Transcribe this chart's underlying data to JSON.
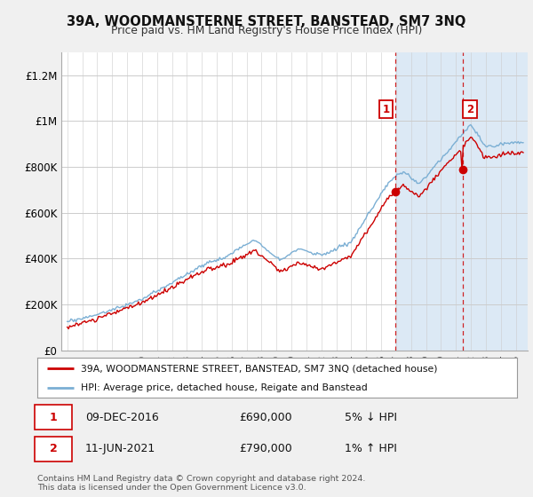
{
  "title": "39A, WOODMANSTERNE STREET, BANSTEAD, SM7 3NQ",
  "subtitle": "Price paid vs. HM Land Registry's House Price Index (HPI)",
  "legend_line1": "39A, WOODMANSTERNE STREET, BANSTEAD, SM7 3NQ (detached house)",
  "legend_line2": "HPI: Average price, detached house, Reigate and Banstead",
  "annotation1_label": "1",
  "annotation1_date": "09-DEC-2016",
  "annotation1_price": "£690,000",
  "annotation1_pct": "5% ↓ HPI",
  "annotation2_label": "2",
  "annotation2_date": "11-JUN-2021",
  "annotation2_price": "£790,000",
  "annotation2_pct": "1% ↑ HPI",
  "footer": "Contains HM Land Registry data © Crown copyright and database right 2024.\nThis data is licensed under the Open Government Licence v3.0.",
  "hpi_color": "#7bafd4",
  "price_color": "#cc0000",
  "annotation_color": "#cc0000",
  "vline_color": "#cc0000",
  "shade_color": "#dce9f5",
  "background_color": "#f0f0f0",
  "plot_bg_color": "#ffffff",
  "ylim": [
    0,
    1300000
  ],
  "yticks": [
    0,
    200000,
    400000,
    600000,
    800000,
    1000000,
    1200000
  ],
  "ytick_labels": [
    "£0",
    "£200K",
    "£400K",
    "£600K",
    "£800K",
    "£1M",
    "£1.2M"
  ],
  "vline1_x": 2016.92,
  "vline2_x": 2021.44,
  "sale1_x": 2016.92,
  "sale1_y": 690000,
  "sale2_x": 2021.44,
  "sale2_y": 790000,
  "xmin": 1994.6,
  "xmax": 2025.8
}
